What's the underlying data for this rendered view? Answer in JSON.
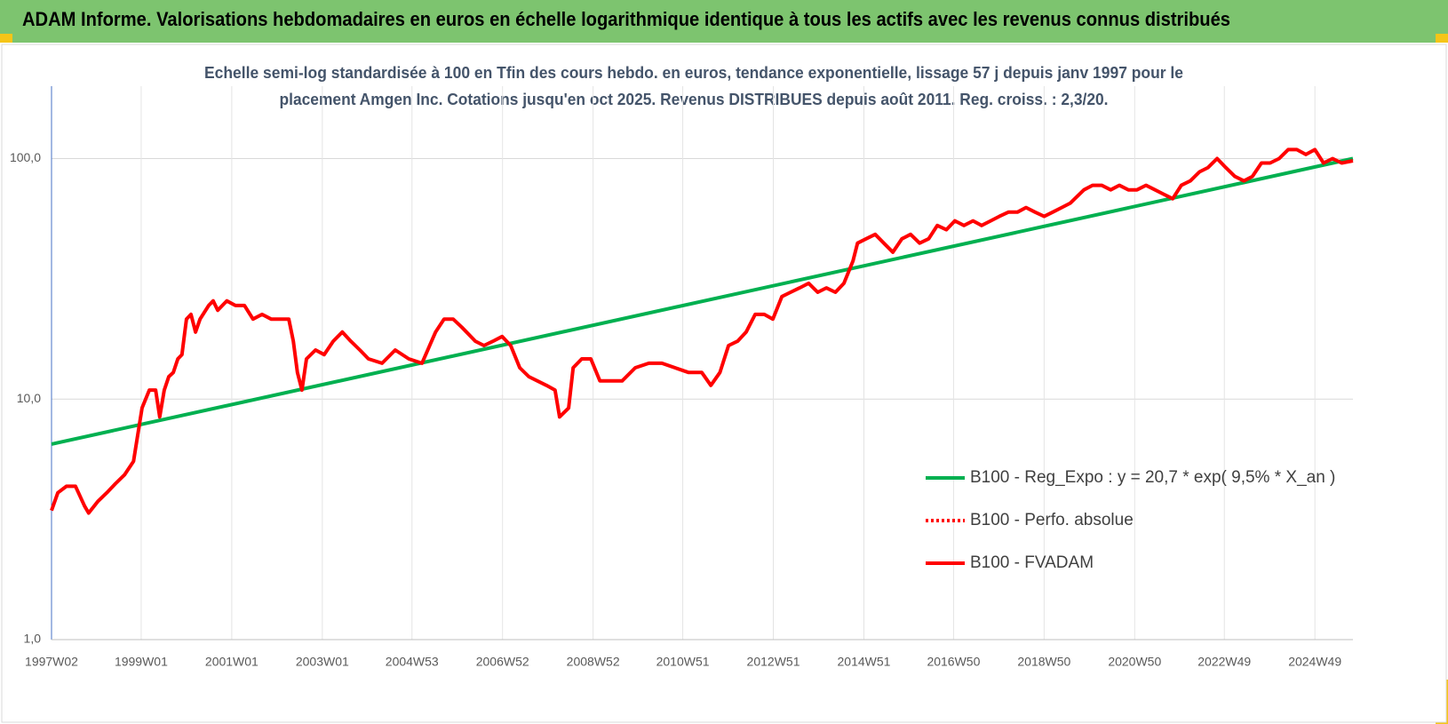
{
  "chart_data": {
    "type": "line",
    "title": "ADAM Informe. Valorisations hebdomadaires en euros en échelle logarithmique identique à tous les actifs avec les revenus connus distribués",
    "subtitle": [
      "Echelle semi-log standardisée à 100 en Tfin des cours hebdo. en euros, tendance exponentielle, lissage 57 j depuis janv 1997 pour le",
      "placement Amgen Inc. Cotations jusqu'en oct 2025. Revenus DISTRIBUES depuis août 2011. Reg. croiss. : 2,3/20."
    ],
    "xlim": [
      1997.02,
      2025.76
    ],
    "xticks": [
      {
        "value": 1997.02,
        "label": "1997W02"
      },
      {
        "value": 1999.0,
        "label": "1999W01"
      },
      {
        "value": 2001.0,
        "label": "2001W01"
      },
      {
        "value": 2003.0,
        "label": "2003W01"
      },
      {
        "value": 2004.98,
        "label": "2004W53"
      },
      {
        "value": 2006.98,
        "label": "2006W52"
      },
      {
        "value": 2008.98,
        "label": "2008W52"
      },
      {
        "value": 2010.96,
        "label": "2010W51"
      },
      {
        "value": 2012.96,
        "label": "2012W51"
      },
      {
        "value": 2014.96,
        "label": "2014W51"
      },
      {
        "value": 2016.94,
        "label": "2016W50"
      },
      {
        "value": 2018.94,
        "label": "2018W50"
      },
      {
        "value": 2020.94,
        "label": "2020W50"
      },
      {
        "value": 2022.92,
        "label": "2022W49"
      },
      {
        "value": 2024.92,
        "label": "2024W49"
      }
    ],
    "ylim": [
      1,
      200
    ],
    "yticks": [
      {
        "value": 1,
        "label": "1,0"
      },
      {
        "value": 10,
        "label": "10,0"
      },
      {
        "value": 100,
        "label": "100,0"
      }
    ],
    "log_scale_y": true,
    "grid": true,
    "legend": "right",
    "series": [
      {
        "name": "B100 - Reg_Expo : y = 20,7 * exp( 9,5% *  X_an )",
        "color": "#00b050",
        "dash": "solid",
        "x": [
          1997.02,
          2025.76
        ],
        "values": [
          6.5,
          100
        ]
      },
      {
        "name": "B100 - Perfo. absolue",
        "color": "#ff0000",
        "dash": "dotted",
        "x": [],
        "values": []
      },
      {
        "name": "B100 - FVADAM",
        "color": "#ff0000",
        "dash": "solid",
        "x": [
          1997.02,
          1997.16,
          1997.35,
          1997.55,
          1997.75,
          1997.84,
          1998.04,
          1998.24,
          1998.43,
          1998.63,
          1998.83,
          1999.02,
          1999.18,
          1999.32,
          1999.41,
          1999.51,
          1999.61,
          1999.71,
          1999.81,
          1999.9,
          2000.0,
          2000.1,
          2000.2,
          2000.3,
          2000.49,
          2000.59,
          2000.69,
          2000.89,
          2001.08,
          2001.28,
          2001.47,
          2001.67,
          2001.87,
          2002.06,
          2002.26,
          2002.36,
          2002.45,
          2002.55,
          2002.65,
          2002.85,
          2003.04,
          2003.24,
          2003.44,
          2003.63,
          2003.83,
          2004.02,
          2004.32,
          2004.61,
          2004.91,
          2005.2,
          2005.5,
          2005.69,
          2005.89,
          2006.08,
          2006.38,
          2006.57,
          2006.77,
          2006.97,
          2007.16,
          2007.36,
          2007.56,
          2007.75,
          2007.95,
          2008.14,
          2008.24,
          2008.44,
          2008.54,
          2008.73,
          2008.93,
          2009.13,
          2009.32,
          2009.62,
          2009.91,
          2010.21,
          2010.5,
          2010.79,
          2011.09,
          2011.38,
          2011.58,
          2011.78,
          2011.97,
          2012.17,
          2012.36,
          2012.56,
          2012.76,
          2012.95,
          2013.15,
          2013.34,
          2013.54,
          2013.74,
          2013.94,
          2014.13,
          2014.33,
          2014.52,
          2014.72,
          2014.82,
          2015.01,
          2015.21,
          2015.4,
          2015.6,
          2015.8,
          2015.99,
          2016.19,
          2016.39,
          2016.58,
          2016.78,
          2016.97,
          2017.17,
          2017.37,
          2017.56,
          2017.76,
          2017.95,
          2018.15,
          2018.35,
          2018.54,
          2018.74,
          2018.94,
          2019.13,
          2019.33,
          2019.52,
          2019.82,
          2020.01,
          2020.21,
          2020.41,
          2020.6,
          2020.8,
          2020.99,
          2021.19,
          2021.39,
          2021.58,
          2021.78,
          2021.97,
          2022.17,
          2022.37,
          2022.56,
          2022.76,
          2022.95,
          2023.15,
          2023.35,
          2023.54,
          2023.74,
          2023.93,
          2024.13,
          2024.33,
          2024.52,
          2024.72,
          2024.92,
          2025.11,
          2025.31,
          2025.51,
          2025.76
        ],
        "values": [
          3.44,
          4.08,
          4.34,
          4.34,
          3.59,
          3.36,
          3.75,
          4.08,
          4.45,
          4.84,
          5.51,
          9.18,
          10.9,
          10.9,
          8.43,
          10.9,
          12.4,
          12.9,
          14.7,
          15.3,
          21.5,
          22.5,
          19.0,
          21.5,
          24.5,
          25.6,
          23.4,
          25.6,
          24.5,
          24.5,
          21.5,
          22.5,
          21.5,
          21.5,
          21.5,
          17.4,
          12.9,
          10.9,
          14.7,
          16.0,
          15.3,
          17.4,
          19.0,
          17.4,
          16.0,
          14.7,
          14.1,
          16.0,
          14.7,
          14.1,
          19.0,
          21.5,
          21.5,
          19.9,
          17.4,
          16.7,
          17.4,
          18.2,
          16.7,
          13.5,
          12.4,
          11.9,
          11.4,
          10.9,
          8.43,
          9.18,
          13.5,
          14.7,
          14.7,
          11.9,
          11.9,
          11.9,
          13.5,
          14.1,
          14.1,
          13.5,
          12.9,
          12.9,
          11.4,
          12.9,
          16.7,
          17.4,
          19.0,
          22.5,
          22.5,
          21.5,
          26.7,
          27.8,
          29.0,
          30.3,
          27.8,
          29.0,
          27.8,
          30.3,
          37.5,
          44.5,
          46.4,
          48.4,
          44.5,
          40.8,
          46.4,
          48.4,
          44.5,
          46.4,
          52.7,
          50.6,
          55.1,
          52.7,
          55.1,
          52.7,
          55.1,
          57.5,
          59.9,
          59.9,
          62.6,
          59.9,
          57.5,
          59.9,
          62.6,
          65.3,
          74.1,
          77.4,
          77.4,
          74.1,
          77.4,
          74.1,
          74.1,
          77.4,
          74.1,
          71.1,
          68.1,
          77.4,
          80.8,
          88.0,
          91.8,
          100,
          91.8,
          84.3,
          80.8,
          84.3,
          95.8,
          95.8,
          100,
          109,
          109,
          104,
          109,
          95.8,
          100,
          95.8,
          97.9
        ]
      }
    ]
  }
}
